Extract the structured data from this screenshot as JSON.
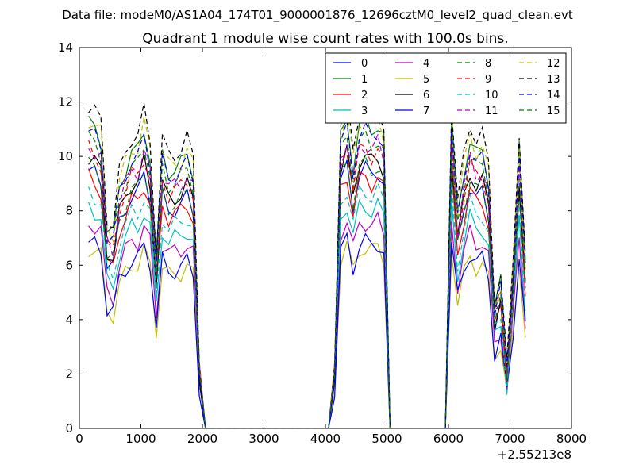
{
  "suptitle": "Data file: modeM0/AS1A04_174T01_9000001876_12696cztM0_level2_quad_clean.evt",
  "chart_data": {
    "type": "line",
    "title": "Quadrant 1 module wise count rates with 100.0s bins.",
    "xlabel": "",
    "ylabel": "",
    "x_offset_label": "+2.55213e8",
    "xlim": [
      0,
      8000
    ],
    "ylim": [
      0,
      14
    ],
    "xticks": [
      0,
      1000,
      2000,
      3000,
      4000,
      5000,
      6000,
      7000,
      8000
    ],
    "yticks": [
      0,
      2,
      4,
      6,
      8,
      10,
      12,
      14
    ],
    "grid": false,
    "legend_position": "top-right",
    "legend_columns": 4,
    "x": [
      150,
      250,
      350,
      450,
      550,
      650,
      750,
      850,
      950,
      1050,
      1150,
      1250,
      1350,
      1450,
      1550,
      1650,
      1750,
      1850,
      1950,
      2050,
      2150,
      2250,
      2350,
      2450,
      2550,
      2650,
      2750,
      2850,
      2950,
      3050,
      3150,
      3250,
      3350,
      3450,
      3550,
      3650,
      3750,
      3850,
      3950,
      4050,
      4150,
      4250,
      4350,
      4450,
      4550,
      4650,
      4750,
      4850,
      4950,
      5050,
      5150,
      5250,
      5350,
      5450,
      5550,
      5650,
      5750,
      5850,
      5950,
      6050,
      6150,
      6250,
      6350,
      6450,
      6550,
      6650,
      6750,
      6850,
      6950,
      7050,
      7150,
      7250
    ],
    "base_profile": [
      9.5,
      9.3,
      9.0,
      6.2,
      6.0,
      7.5,
      8.1,
      8.6,
      8.6,
      9.3,
      8.5,
      5.2,
      8.5,
      8.0,
      8.1,
      8.2,
      8.5,
      8.0,
      2.0,
      0,
      0,
      0,
      0,
      0,
      0,
      0,
      0,
      0,
      0,
      0,
      0,
      0,
      0,
      0,
      0,
      0,
      0,
      0,
      0,
      0,
      2.0,
      9.0,
      9.6,
      8.2,
      9.4,
      9.5,
      9.3,
      9.5,
      9.0,
      0,
      0,
      0,
      0,
      0,
      0,
      0,
      0,
      0,
      0,
      9.6,
      6.6,
      8.0,
      9.0,
      8.5,
      8.6,
      7.8,
      3.8,
      4.5,
      1.8,
      5.0,
      8.8,
      5.0
    ],
    "series": [
      {
        "name": "0",
        "color": "#0000ff",
        "dashed": false,
        "scale": 1.0
      },
      {
        "name": "1",
        "color": "#008000",
        "dashed": false,
        "scale": 1.18
      },
      {
        "name": "2",
        "color": "#ff0000",
        "dashed": false,
        "scale": 0.97
      },
      {
        "name": "3",
        "color": "#00bfbf",
        "dashed": false,
        "scale": 0.86
      },
      {
        "name": "4",
        "color": "#bf00bf",
        "dashed": false,
        "scale": 0.8
      },
      {
        "name": "5",
        "color": "#bfbf00",
        "dashed": false,
        "scale": 0.7
      },
      {
        "name": "6",
        "color": "#000000",
        "dashed": false,
        "scale": 1.05
      },
      {
        "name": "7",
        "color": "#0000ff",
        "dashed": false,
        "scale": 0.72
      },
      {
        "name": "8",
        "color": "#008000",
        "dashed": true,
        "scale": 1.12
      },
      {
        "name": "9",
        "color": "#ff0000",
        "dashed": true,
        "scale": 1.08
      },
      {
        "name": "10",
        "color": "#00bfbf",
        "dashed": true,
        "scale": 0.92
      },
      {
        "name": "11",
        "color": "#bf00bf",
        "dashed": true,
        "scale": 1.1
      },
      {
        "name": "12",
        "color": "#bfbf00",
        "dashed": true,
        "scale": 1.2
      },
      {
        "name": "13",
        "color": "#000000",
        "dashed": true,
        "scale": 1.25
      },
      {
        "name": "14",
        "color": "#0000ff",
        "dashed": true,
        "scale": 1.15
      },
      {
        "name": "15",
        "color": "#008000",
        "dashed": true,
        "scale": 1.02
      }
    ]
  }
}
